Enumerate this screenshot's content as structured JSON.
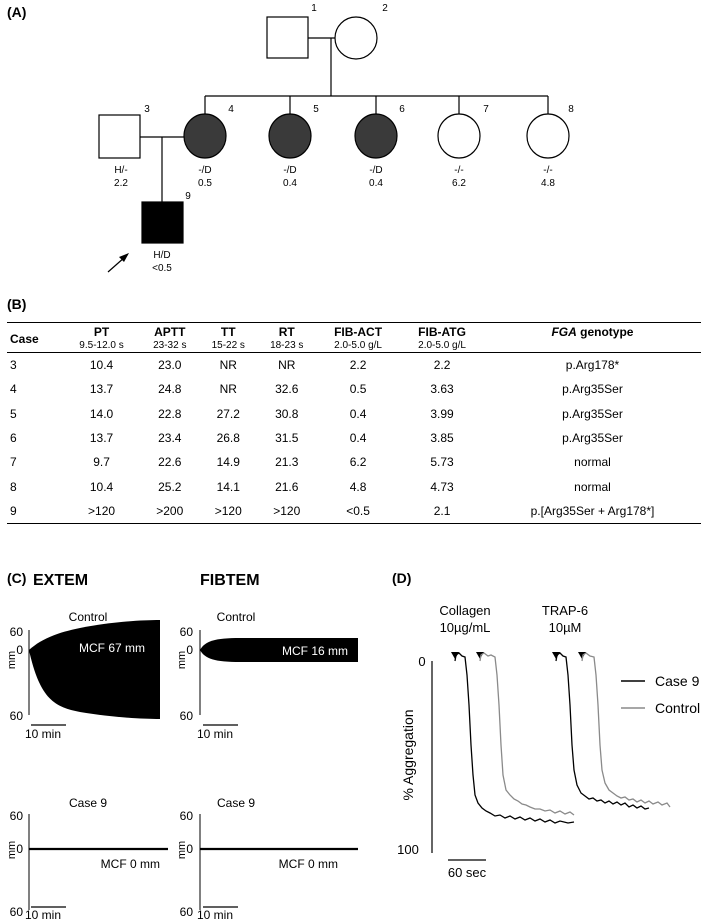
{
  "panels": {
    "a": "(A)",
    "b": "(B)",
    "c": "(C)",
    "d": "(D)"
  },
  "pedigree": {
    "individuals": [
      {
        "id": "1",
        "sex": "male",
        "affected": false,
        "genotype": "",
        "fib": ""
      },
      {
        "id": "2",
        "sex": "female",
        "affected": false,
        "genotype": "",
        "fib": ""
      },
      {
        "id": "3",
        "sex": "male",
        "affected": false,
        "genotype": "H/-",
        "fib": "2.2"
      },
      {
        "id": "4",
        "sex": "female",
        "affected": true,
        "genotype": "-/D",
        "fib": "0.5"
      },
      {
        "id": "5",
        "sex": "female",
        "affected": true,
        "genotype": "-/D",
        "fib": "0.4"
      },
      {
        "id": "6",
        "sex": "female",
        "affected": true,
        "genotype": "-/D",
        "fib": "0.4"
      },
      {
        "id": "7",
        "sex": "female",
        "affected": false,
        "genotype": "-/-",
        "fib": "6.2"
      },
      {
        "id": "8",
        "sex": "female",
        "affected": false,
        "genotype": "-/-",
        "fib": "4.8"
      },
      {
        "id": "9",
        "sex": "male",
        "affected": true,
        "genotype": "H/D",
        "fib": "<0.5",
        "proband": true
      }
    ]
  },
  "table": {
    "headers": [
      {
        "label": "Case",
        "range": ""
      },
      {
        "label": "PT",
        "range": "9.5-12.0 s"
      },
      {
        "label": "APTT",
        "range": "23-32 s"
      },
      {
        "label": "TT",
        "range": "15-22 s"
      },
      {
        "label": "RT",
        "range": "18-23 s"
      },
      {
        "label": "FIB-ACT",
        "range": "2.0-5.0 g/L"
      },
      {
        "label": "FIB-ATG",
        "range": "2.0-5.0 g/L"
      },
      {
        "label": "FGA",
        "label_suffix": " genotype",
        "range": ""
      }
    ],
    "rows": [
      [
        "3",
        "10.4",
        "23.0",
        "NR",
        "NR",
        "2.2",
        "2.2",
        "p.Arg178*"
      ],
      [
        "4",
        "13.7",
        "24.8",
        "NR",
        "32.6",
        "0.5",
        "3.63",
        "p.Arg35Ser"
      ],
      [
        "5",
        "14.0",
        "22.8",
        "27.2",
        "30.8",
        "0.4",
        "3.99",
        "p.Arg35Ser"
      ],
      [
        "6",
        "13.7",
        "23.4",
        "26.8",
        "31.5",
        "0.4",
        "3.85",
        "p.Arg35Ser"
      ],
      [
        "7",
        "9.7",
        "22.6",
        "14.9",
        "21.3",
        "6.2",
        "5.73",
        "normal"
      ],
      [
        "8",
        "10.4",
        "25.2",
        "14.1",
        "21.6",
        "4.8",
        "4.73",
        "normal"
      ],
      [
        "9",
        ">120",
        ">200",
        ">120",
        ">120",
        "<0.5",
        "2.1",
        "p.[Arg35Ser + Arg178*]"
      ]
    ]
  },
  "rotem": {
    "extem_title": "EXTEM",
    "fibtem_title": "FIBTEM",
    "control_label": "Control",
    "case_label": "Case 9",
    "axis_unit": "mm",
    "tick_top": "60",
    "tick_mid": "0",
    "tick_bot": "60",
    "scale_label": "10 min",
    "extem_control_mcf": "MCF 67 mm",
    "fibtem_control_mcf": "MCF 16 mm",
    "extem_case_mcf": "MCF 0 mm",
    "fibtem_case_mcf": "MCF 0 mm",
    "colors": {
      "trace": "#000000"
    }
  },
  "aggregation": {
    "agonist1_line1": "Collagen",
    "agonist1_line2": "10µg/mL",
    "agonist2_line1": "TRAP-6",
    "agonist2_line2": "10µM",
    "ylabel": "% Aggregation",
    "y_top": "0",
    "y_bottom": "100",
    "scale_label": "60 sec",
    "legend": [
      {
        "name": "Case 9",
        "color": "#000000"
      },
      {
        "name": "Control",
        "color": "#8a8a8a"
      }
    ]
  }
}
